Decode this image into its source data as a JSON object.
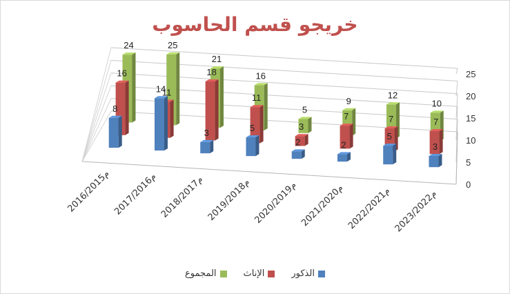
{
  "chart_data": {
    "type": "bar",
    "title": "خريجو قسم الحاسوب",
    "categories": [
      "2016/2015م",
      "2017/2016م",
      "2018/2017م",
      "2019/2018م",
      "2020/2019م",
      "2021/2020م",
      "2022/2021م",
      "2023/2022م"
    ],
    "series": [
      {
        "name": "الذكور",
        "values": [
          8,
          14,
          3,
          5,
          2,
          2,
          5,
          3
        ],
        "color": "#4f81bd"
      },
      {
        "name": "الإناث",
        "values": [
          16,
          11,
          18,
          11,
          3,
          7,
          7,
          7
        ],
        "color": "#c0504d"
      },
      {
        "name": "المجموع",
        "values": [
          24,
          25,
          21,
          16,
          5,
          9,
          12,
          10
        ],
        "color": "#9bbb59"
      }
    ],
    "yticks": [
      0,
      5,
      10,
      15,
      20,
      25
    ],
    "ylim": [
      0,
      25
    ],
    "grid": true,
    "legend_position": "bottom",
    "perspective": "3d"
  }
}
